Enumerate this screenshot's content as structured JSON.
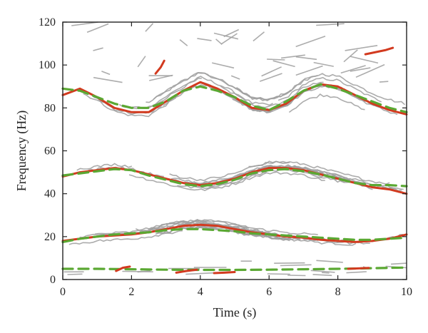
{
  "chart_data": {
    "type": "line",
    "xlabel": "Time (s)",
    "ylabel": "Frequency (Hz)",
    "xlim": [
      0,
      10
    ],
    "ylim": [
      0,
      120
    ],
    "x_ticks": [
      0,
      2,
      4,
      6,
      8,
      10
    ],
    "y_ticks": [
      0,
      20,
      40,
      60,
      80,
      100,
      120
    ],
    "grid": false,
    "legend": "none",
    "colors": {
      "background_tracks": "#9e9e9e",
      "estimate_solid": "#d23a1f",
      "reference_dashed": "#5aa832",
      "axis": "#222222"
    },
    "series": [
      {
        "style": "solid-red",
        "x": [
          0,
          0.5,
          1,
          1.5,
          2,
          2.5,
          3,
          3.5,
          4,
          4.5,
          5,
          5.5,
          6,
          6.5,
          7,
          7.5,
          8,
          8.5,
          9,
          9.5,
          10
        ],
        "y": [
          86,
          89,
          85,
          80,
          78,
          78,
          83,
          88,
          92,
          89,
          85,
          80,
          79,
          82,
          88,
          91,
          90,
          86,
          82,
          79,
          77
        ]
      },
      {
        "style": "dashed-green",
        "x": [
          0,
          0.5,
          1,
          1.5,
          2,
          2.5,
          3,
          3.5,
          4,
          4.5,
          5,
          5.5,
          6,
          6.5,
          7,
          7.5,
          8,
          8.5,
          9,
          9.5,
          10
        ],
        "y": [
          89,
          88,
          85,
          82,
          80,
          80,
          83,
          88,
          90,
          88,
          85,
          81,
          79,
          83,
          88,
          91,
          89,
          86,
          83,
          80,
          78
        ]
      },
      {
        "style": "solid-red",
        "x": [
          0,
          0.5,
          1,
          1.5,
          2,
          2.5,
          3,
          3.5,
          4,
          4.5,
          5,
          5.5,
          6,
          6.5,
          7,
          7.5,
          8,
          8.5,
          9,
          9.5,
          10
        ],
        "y": [
          48,
          50,
          51,
          52,
          51,
          49,
          47,
          45,
          44,
          45,
          47,
          50,
          52,
          52,
          51,
          49,
          47,
          45,
          43,
          42,
          40
        ]
      },
      {
        "style": "dashed-green",
        "x": [
          0,
          0.5,
          1,
          1.5,
          2,
          2.5,
          3,
          3.5,
          4,
          4.5,
          5,
          5.5,
          6,
          6.5,
          7,
          7.5,
          8,
          8.5,
          9,
          9.5,
          10
        ],
        "y": [
          48.5,
          49.5,
          50.5,
          51.5,
          51,
          48.5,
          46.5,
          44.5,
          43.5,
          44.5,
          46.5,
          49.5,
          51,
          51.5,
          50.5,
          49,
          47,
          45,
          44,
          44,
          43.5
        ]
      },
      {
        "style": "solid-red",
        "x": [
          0,
          0.5,
          1,
          1.5,
          2,
          2.5,
          3,
          3.5,
          4,
          4.5,
          5,
          5.5,
          6,
          6.5,
          7,
          7.5,
          8,
          8.5,
          9,
          9.5,
          10
        ],
        "y": [
          18,
          19,
          20,
          20.5,
          21,
          22,
          23.5,
          25,
          25.5,
          25,
          23.5,
          22,
          21,
          20,
          19.5,
          18.5,
          18,
          17.5,
          18,
          19,
          21
        ]
      },
      {
        "style": "dashed-green",
        "x": [
          0,
          0.5,
          1,
          1.5,
          2,
          2.5,
          3,
          3.5,
          4,
          4.5,
          5,
          5.5,
          6,
          6.5,
          7,
          7.5,
          8,
          8.5,
          9,
          9.5,
          10
        ],
        "y": [
          17.5,
          19,
          20,
          21,
          21.5,
          22,
          23,
          23.5,
          23.5,
          23,
          22.5,
          21.5,
          21,
          20.5,
          20,
          19.5,
          19,
          18.5,
          18.5,
          19,
          19.5
        ]
      },
      {
        "style": "dashed-green",
        "x": [
          0,
          1,
          2,
          3,
          4,
          5,
          6,
          7,
          8,
          9,
          10
        ],
        "y": [
          5,
          5,
          4.8,
          4.6,
          4.5,
          4.5,
          4.6,
          4.8,
          5,
          5.3,
          5.6
        ]
      },
      {
        "style": "solid-red",
        "x": [
          1.55,
          1.75,
          1.95
        ],
        "y": [
          4,
          5.5,
          6
        ]
      },
      {
        "style": "solid-red",
        "x": [
          3.3,
          3.6,
          3.9
        ],
        "y": [
          3.2,
          4,
          4.6
        ]
      },
      {
        "style": "solid-red",
        "x": [
          4.4,
          4.7,
          5
        ],
        "y": [
          3,
          3.2,
          3.5
        ]
      },
      {
        "style": "solid-red",
        "x": [
          8.3,
          8.6,
          8.9
        ],
        "y": [
          5,
          5.2,
          5.4
        ]
      },
      {
        "style": "solid-red",
        "x": [
          2.7,
          2.85,
          2.95
        ],
        "y": [
          96,
          99,
          102
        ]
      },
      {
        "style": "solid-red",
        "x": [
          8.8,
          9.1,
          9.4,
          9.6
        ],
        "y": [
          105,
          106,
          107,
          108
        ]
      }
    ]
  }
}
